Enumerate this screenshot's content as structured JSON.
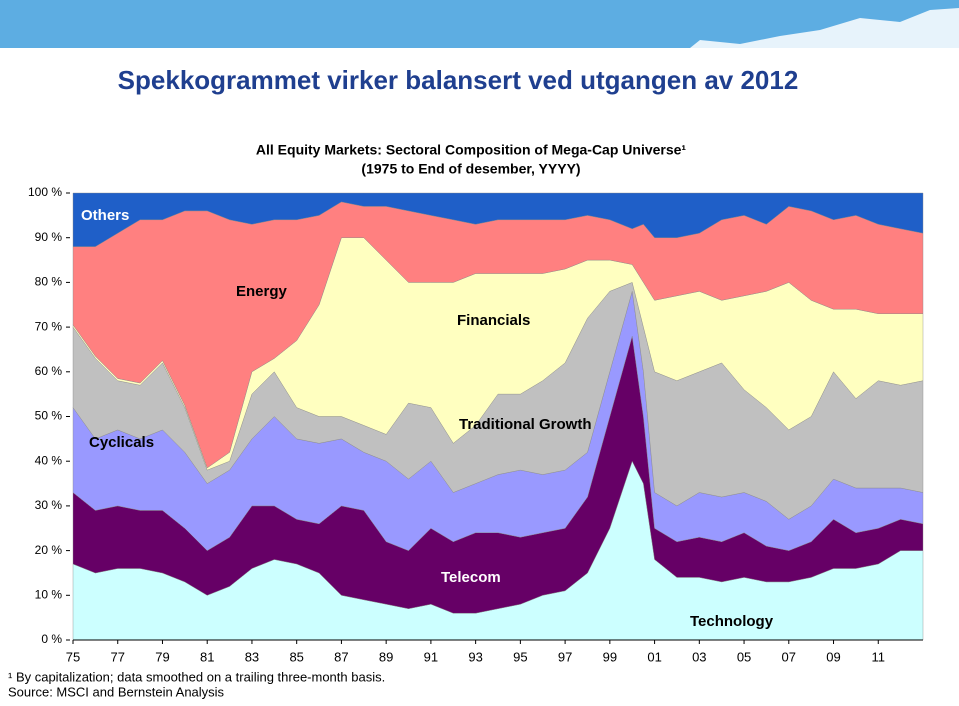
{
  "header": {
    "title": "Spekkogrammet virker balansert ved utgangen av 2012"
  },
  "chart_data": {
    "type": "stacked-area",
    "title": "All Equity Markets: Sectoral Composition of Mega-Cap Universe¹",
    "subtitle": "(1975 to End of desember, YYYY)",
    "x": [
      1975,
      1976,
      1977,
      1978,
      1979,
      1980,
      1981,
      1982,
      1983,
      1984,
      1985,
      1986,
      1987,
      1988,
      1989,
      1990,
      1991,
      1992,
      1993,
      1994,
      1995,
      1996,
      1997,
      1998,
      1999,
      2000,
      2000.5,
      2001,
      2002,
      2003,
      2004,
      2005,
      2006,
      2007,
      2008,
      2009,
      2010,
      2011,
      2012,
      2013
    ],
    "xlim": [
      1975,
      2013
    ],
    "xticks": [
      {
        "value": 1975,
        "label": "75"
      },
      {
        "value": 1977,
        "label": "77"
      },
      {
        "value": 1979,
        "label": "79"
      },
      {
        "value": 1981,
        "label": "81"
      },
      {
        "value": 1983,
        "label": "83"
      },
      {
        "value": 1985,
        "label": "85"
      },
      {
        "value": 1987,
        "label": "87"
      },
      {
        "value": 1989,
        "label": "89"
      },
      {
        "value": 1991,
        "label": "91"
      },
      {
        "value": 1993,
        "label": "93"
      },
      {
        "value": 1995,
        "label": "95"
      },
      {
        "value": 1997,
        "label": "97"
      },
      {
        "value": 1999,
        "label": "99"
      },
      {
        "value": 2001,
        "label": "01"
      },
      {
        "value": 2003,
        "label": "03"
      },
      {
        "value": 2005,
        "label": "05"
      },
      {
        "value": 2007,
        "label": "07"
      },
      {
        "value": 2009,
        "label": "09"
      },
      {
        "value": 2011,
        "label": "11"
      }
    ],
    "ylim": [
      0,
      100
    ],
    "yticks": [
      {
        "value": 0,
        "label": "0 %"
      },
      {
        "value": 10,
        "label": "10 %"
      },
      {
        "value": 20,
        "label": "20 %"
      },
      {
        "value": 30,
        "label": "30 %"
      },
      {
        "value": 40,
        "label": "40 %"
      },
      {
        "value": 50,
        "label": "50 %"
      },
      {
        "value": 60,
        "label": "60 %"
      },
      {
        "value": 70,
        "label": "70 %"
      },
      {
        "value": 80,
        "label": "80 %"
      },
      {
        "value": 90,
        "label": "90 %"
      },
      {
        "value": 100,
        "label": "100 %"
      }
    ],
    "series": [
      {
        "name": "Technology",
        "color": "#ccffff",
        "values": [
          17,
          15,
          16,
          16,
          15,
          13,
          10,
          12,
          16,
          18,
          17,
          15,
          10,
          9,
          8,
          7,
          8,
          6,
          6,
          7,
          8,
          10,
          11,
          15,
          25,
          40,
          35,
          18,
          14,
          14,
          13,
          14,
          13,
          13,
          14,
          16,
          16,
          17,
          20,
          20
        ]
      },
      {
        "name": "Telecom",
        "color": "#660066",
        "values": [
          16,
          14,
          14,
          13,
          14,
          12,
          10,
          11,
          14,
          12,
          10,
          11,
          20,
          20,
          14,
          13,
          17,
          16,
          18,
          17,
          15,
          14,
          14,
          17,
          25,
          28,
          15,
          7,
          8,
          9,
          9,
          10,
          8,
          7,
          8,
          11,
          8,
          8,
          7,
          6
        ]
      },
      {
        "name": "Cyclicals",
        "color": "#9999ff",
        "values": [
          19,
          16,
          17,
          16,
          18,
          17,
          15,
          15,
          15,
          20,
          18,
          18,
          15,
          13,
          18,
          16,
          15,
          11,
          11,
          13,
          15,
          13,
          13,
          10,
          10,
          10,
          10,
          8,
          8,
          10,
          10,
          9,
          10,
          7,
          8,
          9,
          10,
          9,
          7,
          7
        ]
      },
      {
        "name": "Traditional Growth",
        "color": "#c0c0c0",
        "values": [
          18,
          18,
          11,
          12,
          15,
          10,
          3,
          2,
          10,
          10,
          7,
          6,
          5,
          6,
          6,
          17,
          12,
          11,
          13,
          18,
          17,
          21,
          24,
          30,
          18,
          2,
          10,
          27,
          28,
          27,
          30,
          23,
          21,
          20,
          20,
          24,
          20,
          24,
          23,
          25
        ]
      },
      {
        "name": "Financials",
        "color": "#ffffc0",
        "values": [
          0.5,
          0.5,
          0.5,
          0.5,
          0.5,
          0.5,
          0.5,
          2,
          5,
          3,
          15,
          25,
          40,
          42,
          39,
          27,
          28,
          36,
          34,
          27,
          27,
          24,
          21,
          13,
          7,
          4,
          10,
          16,
          19,
          18,
          14,
          21,
          26,
          33,
          26,
          14,
          20,
          15,
          16,
          15
        ]
      },
      {
        "name": "Energy",
        "color": "#ff8080",
        "values": [
          17.5,
          24.5,
          32.5,
          36.5,
          31.5,
          43.5,
          57.5,
          52,
          33,
          31,
          27,
          20,
          8,
          7,
          12,
          16,
          15,
          14,
          11,
          12,
          12,
          12,
          11,
          10,
          9,
          8,
          13,
          14,
          13,
          13,
          18,
          18,
          15,
          17,
          20,
          20,
          21,
          20,
          19,
          18
        ]
      },
      {
        "name": "Others",
        "color": "#1f5fc8",
        "values": [
          12,
          12,
          9,
          6,
          6,
          4,
          4,
          6,
          7,
          6,
          6,
          5,
          2,
          3,
          3,
          4,
          5,
          6,
          7,
          6,
          6,
          6,
          6,
          5,
          6,
          8,
          7,
          10,
          10,
          9,
          6,
          5,
          7,
          3,
          4,
          6,
          5,
          7,
          8,
          9
        ]
      }
    ]
  },
  "footnotes": [
    "¹ By capitalization; data smoothed on a trailing three-month basis.",
    "Source: MSCI and Bernstein Analysis"
  ]
}
